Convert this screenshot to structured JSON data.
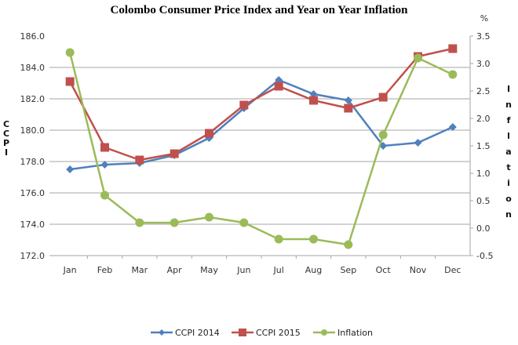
{
  "chart_data": {
    "type": "line",
    "title": "Colombo Consumer Price Index and Year on Year Inflation",
    "xlabel": "",
    "categories": [
      "Jan",
      "Feb",
      "Mar",
      "Apr",
      "May",
      "Jun",
      "Jul",
      "Aug",
      "Sep",
      "Oct",
      "Nov",
      "Dec"
    ],
    "y_left": {
      "label": "CCPI",
      "ylim": [
        172.0,
        186.0
      ],
      "ticks": [
        "186.0",
        "184.0",
        "182.0",
        "180.0",
        "178.0",
        "176.0",
        "174.0",
        "172.0"
      ],
      "tick_values": [
        186,
        184,
        182,
        180,
        178,
        176,
        174,
        172
      ]
    },
    "y_right": {
      "label": "Inflation",
      "unit": "%",
      "ylim": [
        -0.5,
        3.5
      ],
      "ticks": [
        "3.5",
        "3.0",
        "2.5",
        "2.0",
        "1.5",
        "1.0",
        "0.5",
        "0.0",
        "-0.5"
      ],
      "tick_values": [
        3.5,
        3.0,
        2.5,
        2.0,
        1.5,
        1.0,
        0.5,
        0.0,
        -0.5
      ]
    },
    "grid": true,
    "legend_position": "bottom",
    "series": [
      {
        "name": "CCPI 2014",
        "axis": "left",
        "marker": "diamond",
        "color": "#4F81BD",
        "values": [
          177.5,
          177.8,
          177.9,
          178.4,
          179.5,
          181.4,
          183.2,
          182.3,
          181.9,
          179.0,
          179.2,
          180.2
        ]
      },
      {
        "name": "CCPI 2015",
        "axis": "left",
        "marker": "square",
        "color": "#C0504D",
        "values": [
          183.1,
          178.9,
          178.1,
          178.5,
          179.8,
          181.6,
          182.8,
          181.9,
          181.4,
          182.1,
          184.7,
          185.2
        ]
      },
      {
        "name": "Inflation",
        "axis": "right",
        "marker": "circle",
        "color": "#9BBB59",
        "values": [
          3.2,
          0.6,
          0.1,
          0.1,
          0.2,
          0.1,
          -0.2,
          -0.2,
          -0.3,
          1.7,
          3.1,
          2.8
        ]
      }
    ]
  }
}
